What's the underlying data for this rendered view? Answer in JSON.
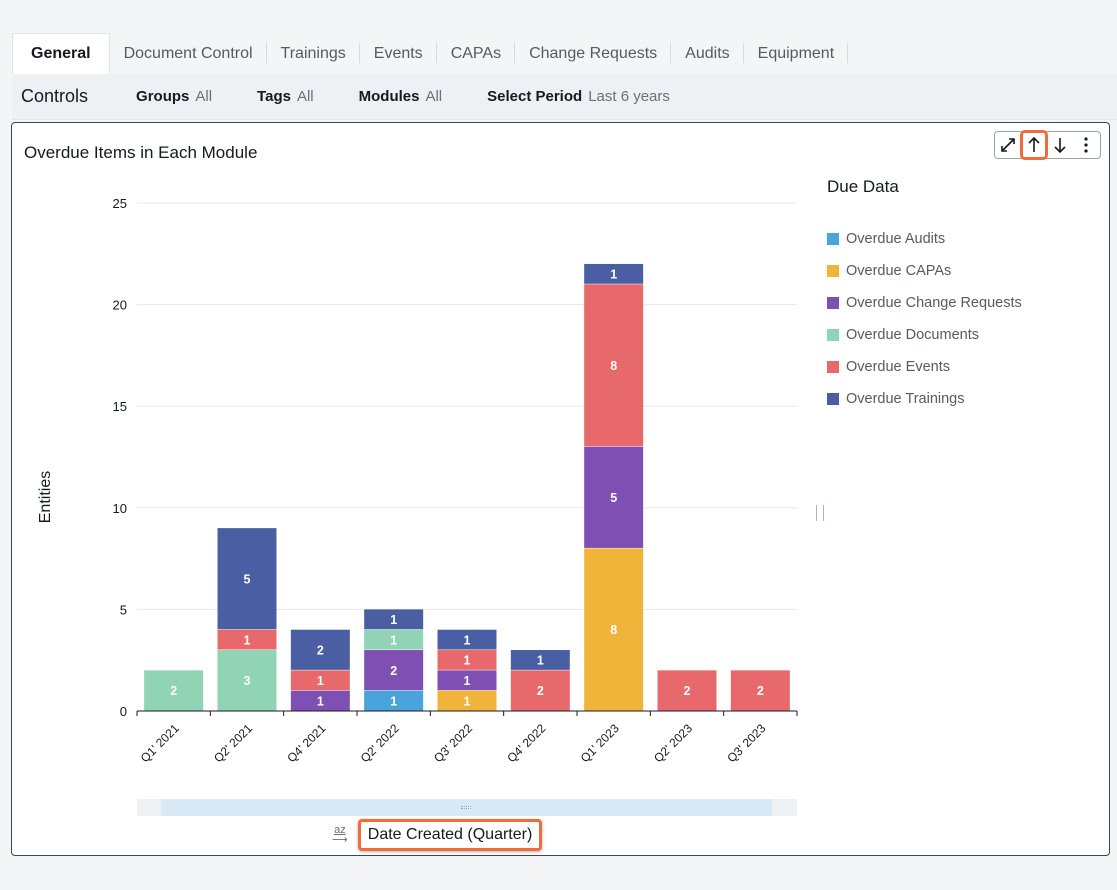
{
  "tabs": [
    {
      "label": "General",
      "active": true
    },
    {
      "label": "Document Control"
    },
    {
      "label": "Trainings"
    },
    {
      "label": "Events"
    },
    {
      "label": "CAPAs"
    },
    {
      "label": "Change Requests"
    },
    {
      "label": "Audits"
    },
    {
      "label": "Equipment"
    }
  ],
  "controls": {
    "title": "Controls",
    "groups": {
      "label": "Groups",
      "value": "All"
    },
    "tags": {
      "label": "Tags",
      "value": "All"
    },
    "modules": {
      "label": "Modules",
      "value": "All"
    },
    "period": {
      "label": "Select Period",
      "value": "Last 6 years"
    }
  },
  "panel": {
    "title": "Overdue Items in Each Module",
    "toolbar_icons": [
      "expand-icon",
      "sort-ascending-icon",
      "sort-descending-icon",
      "more-options-icon"
    ]
  },
  "chart_data": {
    "type": "bar",
    "stacked": true,
    "categories": [
      "Q1' 2021",
      "Q2' 2021",
      "Q4' 2021",
      "Q2' 2022",
      "Q3' 2022",
      "Q4' 2022",
      "Q1' 2023",
      "Q2' 2023",
      "Q3' 2023"
    ],
    "series": [
      {
        "name": "Overdue Audits",
        "color": "#4aa3dc",
        "values": [
          0,
          0,
          0,
          1,
          0,
          0,
          0,
          0,
          0
        ]
      },
      {
        "name": "Overdue CAPAs",
        "color": "#f0b43a",
        "values": [
          0,
          0,
          0,
          0,
          1,
          0,
          8,
          0,
          0
        ]
      },
      {
        "name": "Overdue Change Requests",
        "color": "#7f4fb3",
        "values": [
          0,
          0,
          1,
          2,
          1,
          0,
          5,
          0,
          0
        ]
      },
      {
        "name": "Overdue Documents",
        "color": "#90d3b5",
        "values": [
          2,
          3,
          0,
          1,
          0,
          0,
          0,
          0,
          0
        ]
      },
      {
        "name": "Overdue Events",
        "color": "#e8696b",
        "values": [
          0,
          1,
          1,
          0,
          1,
          2,
          8,
          2,
          2
        ]
      },
      {
        "name": "Overdue Trainings",
        "color": "#4a5fa3",
        "values": [
          0,
          5,
          2,
          1,
          1,
          1,
          1,
          0,
          0
        ]
      }
    ],
    "ylim": [
      0,
      25
    ],
    "yticks": [
      0,
      5,
      10,
      15,
      20,
      25
    ],
    "ylabel": "Entities",
    "xlabel": "Date Created (Quarter)",
    "legend_title": "Due Data",
    "legend_position": "right",
    "grid": true
  }
}
